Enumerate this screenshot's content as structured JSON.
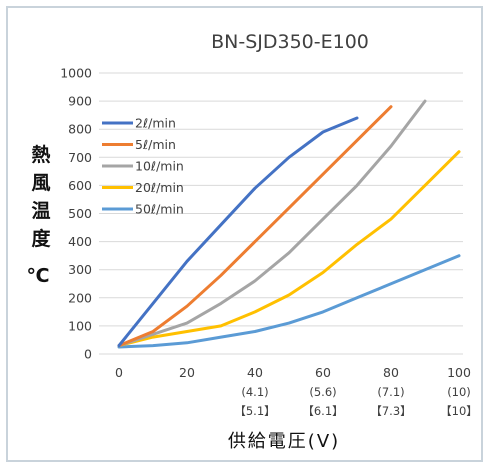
{
  "chart_data": {
    "type": "line",
    "title": "BN-SJD350-E100",
    "ylabel_chars": [
      "熱",
      "風",
      "温",
      "度"
    ],
    "yunit": "℃",
    "xlabel": "供給電圧(V)",
    "ylim": [
      0,
      1000
    ],
    "xlim": [
      0,
      100
    ],
    "yticks": [
      "0",
      "100",
      "200",
      "300",
      "400",
      "500",
      "600",
      "700",
      "800",
      "900",
      "1000"
    ],
    "xticks": [
      {
        "x": 0,
        "label": "0",
        "sub1": "",
        "sub2": ""
      },
      {
        "x": 20,
        "label": "20",
        "sub1": "",
        "sub2": ""
      },
      {
        "x": 40,
        "label": "40",
        "sub1": "(4.1)",
        "sub2": "【5.1】"
      },
      {
        "x": 60,
        "label": "60",
        "sub1": "(5.6)",
        "sub2": "【6.1】"
      },
      {
        "x": 80,
        "label": "80",
        "sub1": "(7.1)",
        "sub2": "【7.3】"
      },
      {
        "x": 100,
        "label": "100",
        "sub1": "(10)",
        "sub2": "【10】"
      }
    ],
    "grid": "horizontal",
    "legend_position": "top-left",
    "series": [
      {
        "name": "2ℓ/min",
        "color": "#4472c4",
        "x": [
          0,
          10,
          20,
          30,
          40,
          50,
          60,
          70
        ],
        "y": [
          30,
          180,
          330,
          460,
          590,
          700,
          790,
          840
        ]
      },
      {
        "name": "5ℓ/min",
        "color": "#ed7d31",
        "x": [
          0,
          10,
          20,
          30,
          40,
          50,
          60,
          70,
          80
        ],
        "y": [
          30,
          80,
          170,
          280,
          400,
          520,
          640,
          760,
          880
        ]
      },
      {
        "name": "10ℓ/min",
        "color": "#a5a5a5",
        "x": [
          0,
          10,
          20,
          30,
          40,
          50,
          60,
          70,
          80,
          90
        ],
        "y": [
          30,
          70,
          110,
          180,
          260,
          360,
          480,
          600,
          740,
          900
        ]
      },
      {
        "name": "20ℓ/min",
        "color": "#ffc000",
        "x": [
          0,
          10,
          20,
          30,
          40,
          50,
          60,
          70,
          80,
          90,
          100
        ],
        "y": [
          30,
          60,
          80,
          100,
          150,
          210,
          290,
          390,
          480,
          600,
          720
        ]
      },
      {
        "name": "50ℓ/min",
        "color": "#5b9bd5",
        "x": [
          0,
          10,
          20,
          30,
          40,
          50,
          60,
          70,
          80,
          90,
          100
        ],
        "y": [
          25,
          30,
          40,
          60,
          80,
          110,
          150,
          200,
          250,
          300,
          350
        ]
      }
    ]
  }
}
